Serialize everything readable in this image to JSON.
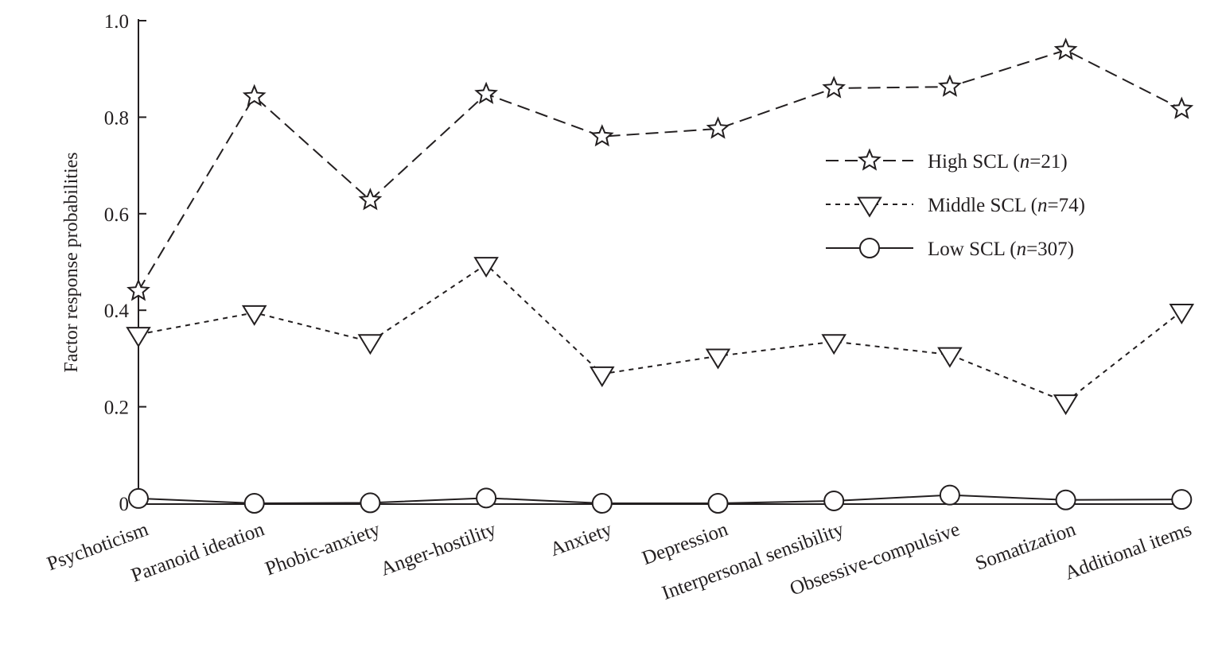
{
  "chart_data": {
    "type": "line",
    "title": "",
    "xlabel": "",
    "ylabel": "Factor response probabilities",
    "ylim": [
      0,
      1.0
    ],
    "yticks": [
      "0",
      "0.2",
      "0.4",
      "0.6",
      "0.8",
      "1.0"
    ],
    "ytick_values": [
      0,
      0.2,
      0.4,
      0.6,
      0.8,
      1.0
    ],
    "grid": false,
    "legend_position": "right",
    "categories": [
      "Psychoticism",
      "Paranoid ideation",
      "Phobic-anxiety",
      "Anger-hostility",
      "Anxiety",
      "Depression",
      "Interpersonal sensibility",
      "Obsessive-compulsive",
      "Somatization",
      "Additional items"
    ],
    "series": [
      {
        "name": "High SCL (n=21)",
        "label_main": "High SCL (",
        "label_n": "n",
        "label_rest": "=21)",
        "marker": "star",
        "line": "long-dash",
        "values": [
          0.44,
          0.843,
          0.628,
          0.848,
          0.76,
          0.776,
          0.86,
          0.863,
          0.939,
          0.817
        ]
      },
      {
        "name": "Middle SCL (n=74)",
        "label_main": "Middle SCL (",
        "label_n": "n",
        "label_rest": "=74)",
        "marker": "triangle-down",
        "line": "short-dash",
        "values": [
          0.35,
          0.395,
          0.335,
          0.495,
          0.268,
          0.305,
          0.335,
          0.308,
          0.21,
          0.398
        ]
      },
      {
        "name": "Low SCL (n=307)",
        "label_main": "Low SCL (",
        "label_n": "n",
        "label_rest": "=307)",
        "marker": "circle",
        "line": "solid",
        "values": [
          0.01,
          0.0,
          0.001,
          0.011,
          0.0,
          0.0,
          0.005,
          0.017,
          0.007,
          0.008
        ]
      }
    ],
    "colors": {
      "ink": "#231f20",
      "background": "#ffffff"
    }
  }
}
